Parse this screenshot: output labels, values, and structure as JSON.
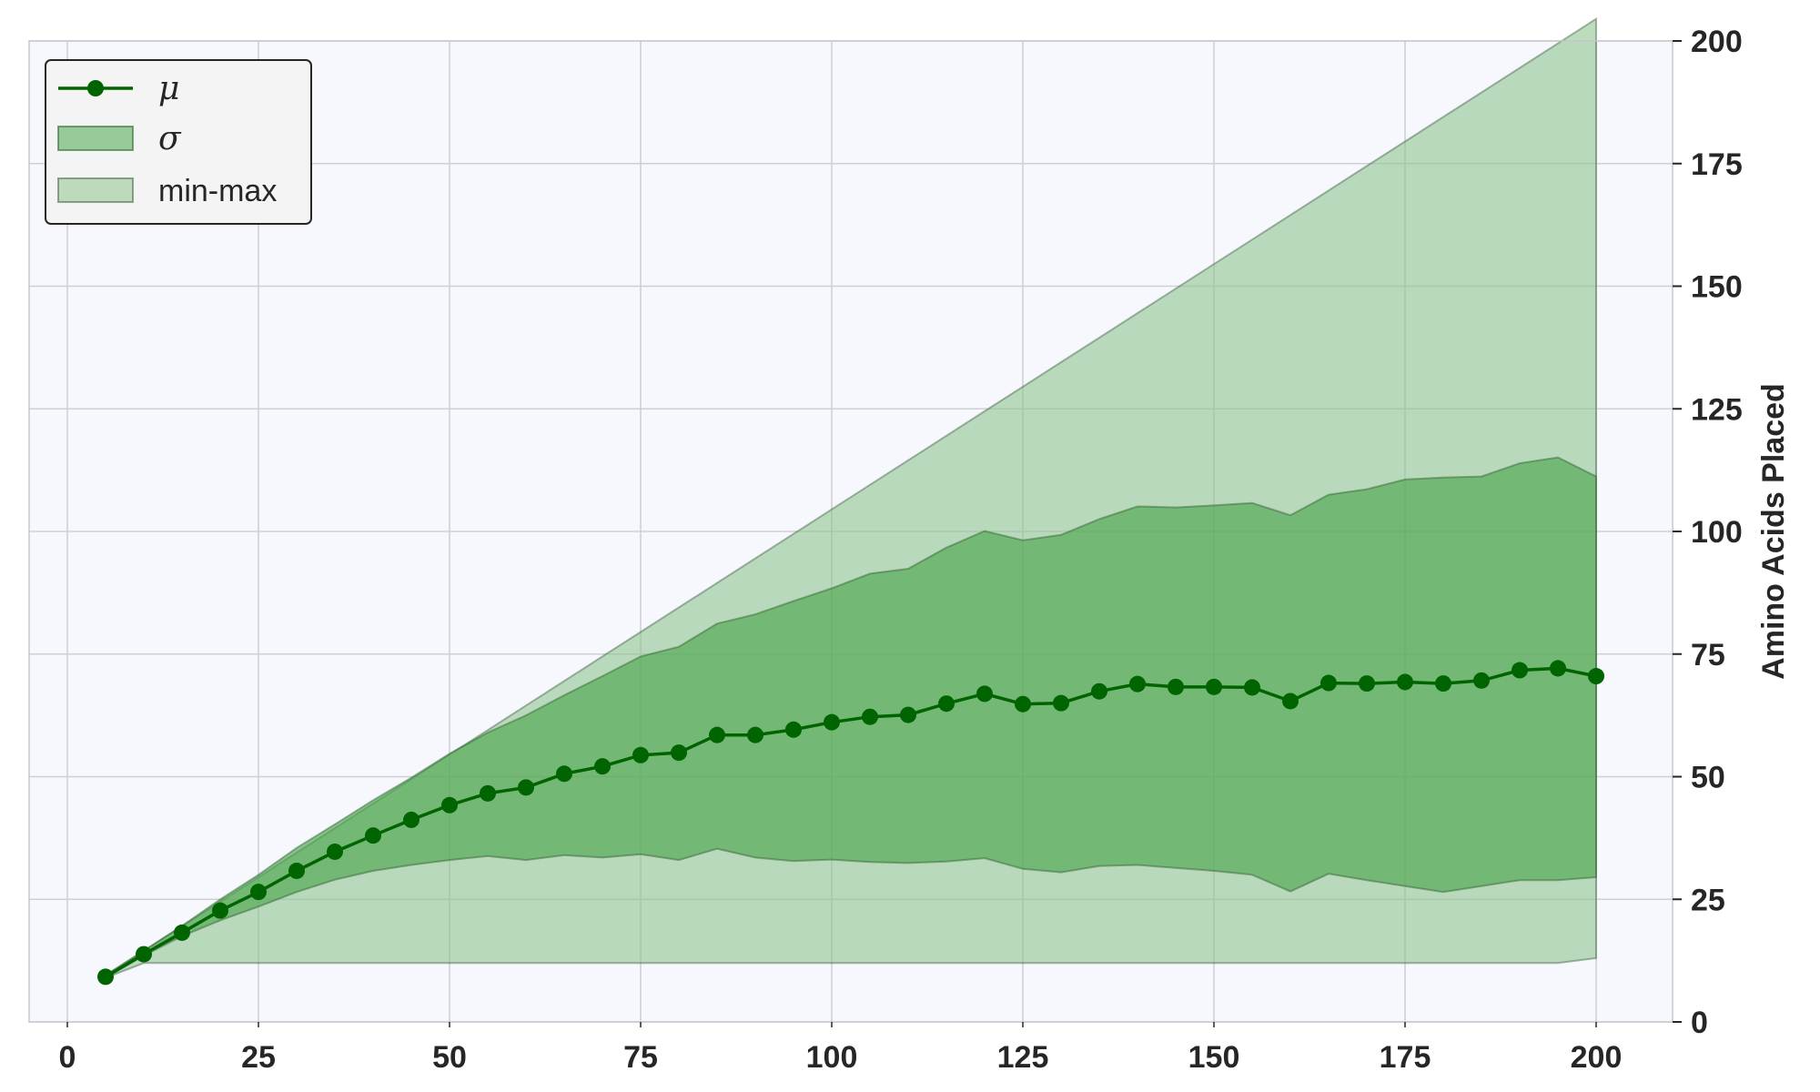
{
  "chart_data": {
    "type": "area",
    "xlabel": "",
    "ylabel": "Amino Acids Placed",
    "xlim": [
      -5,
      210
    ],
    "ylim": [
      0,
      200
    ],
    "x_ticks": [
      0,
      25,
      50,
      75,
      100,
      125,
      150,
      175,
      200
    ],
    "y_ticks": [
      0,
      25,
      50,
      75,
      100,
      125,
      150,
      175,
      200
    ],
    "y_axis_side": "right",
    "grid": true,
    "legend_position": "top-left",
    "x": [
      5,
      10,
      15,
      20,
      25,
      30,
      35,
      40,
      45,
      50,
      55,
      60,
      65,
      70,
      75,
      80,
      85,
      90,
      95,
      100,
      105,
      110,
      115,
      120,
      125,
      130,
      135,
      140,
      145,
      150,
      155,
      160,
      165,
      170,
      175,
      180,
      185,
      190,
      195,
      200
    ],
    "series": [
      {
        "name": "μ",
        "kind": "line-markers",
        "color": "#006400",
        "values": [
          9.2,
          13.8,
          18.2,
          22.7,
          26.5,
          30.8,
          34.7,
          38.0,
          41.2,
          44.2,
          46.6,
          47.8,
          50.6,
          52.1,
          54.4,
          54.9,
          58.5,
          58.5,
          59.6,
          61.1,
          62.2,
          62.6,
          64.9,
          66.9,
          64.8,
          65.0,
          67.4,
          68.9,
          68.3,
          68.3,
          68.2,
          65.4,
          69.1,
          69.0,
          69.3,
          69.0,
          69.6,
          71.7,
          72.1,
          70.5
        ]
      },
      {
        "name": "σ",
        "kind": "band",
        "color": "#4da64d",
        "upper": [
          9.5,
          14.5,
          19.6,
          25.0,
          30.0,
          35.5,
          40.3,
          45.2,
          49.8,
          54.7,
          59.0,
          62.5,
          66.6,
          70.5,
          74.5,
          76.5,
          81.2,
          83.1,
          85.8,
          88.4,
          91.4,
          92.4,
          96.7,
          100.1,
          98.2,
          99.3,
          102.5,
          105.1,
          104.9,
          105.3,
          105.8,
          103.3,
          107.5,
          108.6,
          110.6,
          111.0,
          111.2,
          113.9,
          115.1,
          111.2
        ],
        "lower": [
          9.0,
          13.5,
          17.5,
          20.7,
          23.5,
          26.5,
          29.0,
          30.8,
          32.0,
          33.0,
          33.8,
          33.0,
          34.0,
          33.5,
          34.2,
          33.0,
          35.3,
          33.5,
          32.8,
          33.1,
          32.6,
          32.4,
          32.7,
          33.4,
          31.2,
          30.5,
          31.8,
          32.0,
          31.4,
          30.8,
          30.0,
          26.6,
          30.2,
          28.9,
          27.7,
          26.5,
          27.7,
          28.9,
          28.9,
          29.5
        ]
      },
      {
        "name": "min-max",
        "kind": "band",
        "color": "#8fc48f",
        "upper": [
          9.5,
          14.5,
          19.5,
          24.5,
          29.5,
          34.5,
          39.5,
          44.5,
          49.5,
          54.5,
          59.5,
          64.5,
          69.5,
          74.5,
          79.5,
          84.5,
          89.5,
          94.5,
          99.5,
          104.5,
          109.5,
          114.5,
          119.5,
          124.5,
          129.5,
          134.5,
          139.5,
          144.5,
          149.5,
          154.5,
          159.5,
          164.5,
          169.5,
          174.5,
          179.5,
          184.5,
          189.5,
          194.5,
          199.5,
          204.5
        ],
        "lower": [
          9.0,
          12.0,
          12.0,
          12.0,
          12.0,
          12.0,
          12.0,
          12.0,
          12.0,
          12.0,
          12.0,
          12.0,
          12.0,
          12.0,
          12.0,
          12.0,
          12.0,
          12.0,
          12.0,
          12.0,
          12.0,
          12.0,
          12.0,
          12.0,
          12.0,
          12.0,
          12.0,
          12.0,
          12.0,
          12.0,
          12.0,
          12.0,
          12.0,
          12.0,
          12.0,
          12.0,
          12.0,
          12.0,
          12.0,
          13.0
        ]
      }
    ]
  }
}
